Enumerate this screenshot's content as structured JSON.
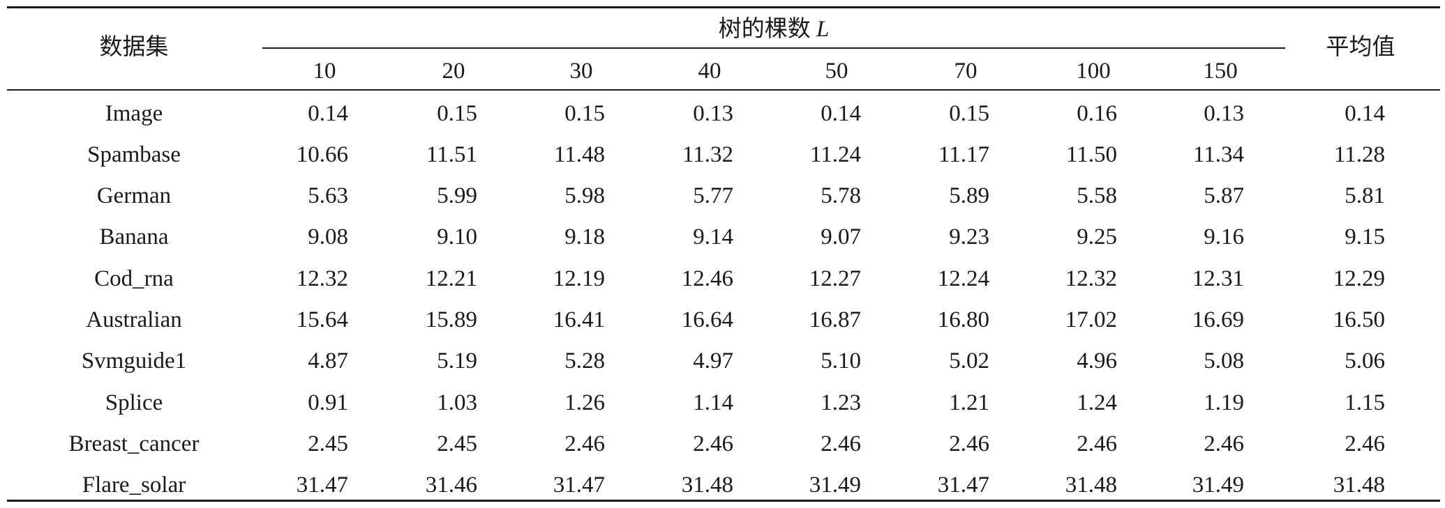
{
  "table": {
    "header": {
      "dataset_label": "数据集",
      "group_label": "树的棵数",
      "group_symbol": "L",
      "average_label": "平均值",
      "columns": [
        "10",
        "20",
        "30",
        "40",
        "50",
        "70",
        "100",
        "150"
      ]
    },
    "rows": [
      {
        "name": "Image",
        "values": [
          "0.14",
          "0.15",
          "0.15",
          "0.13",
          "0.14",
          "0.15",
          "0.16",
          "0.13"
        ],
        "avg": "0.14"
      },
      {
        "name": "Spambase",
        "values": [
          "10.66",
          "11.51",
          "11.48",
          "11.32",
          "11.24",
          "11.17",
          "11.50",
          "11.34"
        ],
        "avg": "11.28"
      },
      {
        "name": "German",
        "values": [
          "5.63",
          "5.99",
          "5.98",
          "5.77",
          "5.78",
          "5.89",
          "5.58",
          "5.87"
        ],
        "avg": "5.81"
      },
      {
        "name": "Banana",
        "values": [
          "9.08",
          "9.10",
          "9.18",
          "9.14",
          "9.07",
          "9.23",
          "9.25",
          "9.16"
        ],
        "avg": "9.15"
      },
      {
        "name": "Cod_rna",
        "values": [
          "12.32",
          "12.21",
          "12.19",
          "12.46",
          "12.27",
          "12.24",
          "12.32",
          "12.31"
        ],
        "avg": "12.29"
      },
      {
        "name": "Australian",
        "values": [
          "15.64",
          "15.89",
          "16.41",
          "16.64",
          "16.87",
          "16.80",
          "17.02",
          "16.69"
        ],
        "avg": "16.50"
      },
      {
        "name": "Svmguide1",
        "values": [
          "4.87",
          "5.19",
          "5.28",
          "4.97",
          "5.10",
          "5.02",
          "4.96",
          "5.08"
        ],
        "avg": "5.06"
      },
      {
        "name": "Splice",
        "values": [
          "0.91",
          "1.03",
          "1.26",
          "1.14",
          "1.23",
          "1.21",
          "1.24",
          "1.19"
        ],
        "avg": "1.15"
      },
      {
        "name": "Breast_cancer",
        "values": [
          "2.45",
          "2.45",
          "2.46",
          "2.46",
          "2.46",
          "2.46",
          "2.46",
          "2.46"
        ],
        "avg": "2.46"
      },
      {
        "name": "Flare_solar",
        "values": [
          "31.47",
          "31.46",
          "31.47",
          "31.48",
          "31.49",
          "31.47",
          "31.48",
          "31.49"
        ],
        "avg": "31.48"
      }
    ]
  }
}
